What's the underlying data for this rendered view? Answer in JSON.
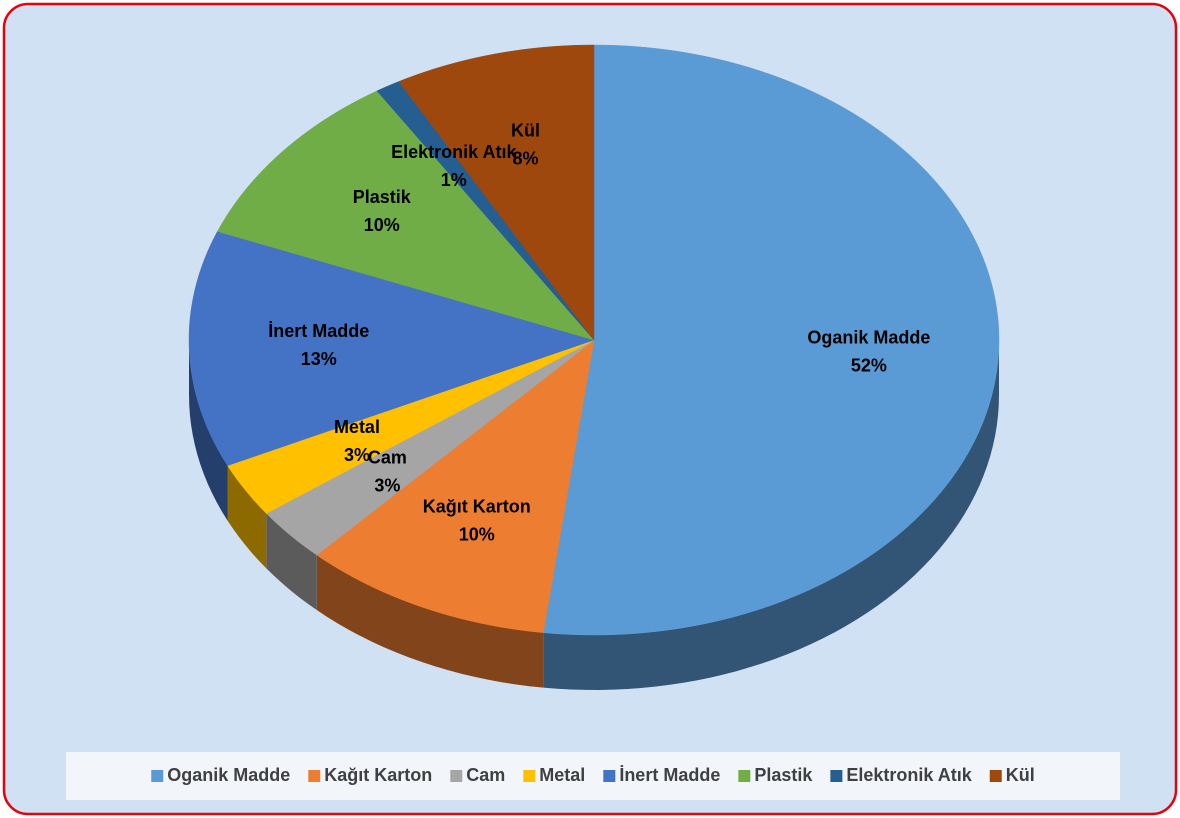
{
  "chart_data": {
    "type": "pie",
    "categories": [
      "Oganik Madde",
      "Kağıt Karton",
      "Cam",
      "Metal",
      "İnert Madde",
      "Plastik",
      "Elektronik Atık",
      "Kül"
    ],
    "values": [
      52,
      10,
      3,
      3,
      13,
      10,
      1,
      8
    ],
    "value_labels": [
      "52%",
      "10%",
      "3%",
      "3%",
      "13%",
      "10%",
      "1%",
      "8%"
    ],
    "colors": [
      "#5b9bd5",
      "#ed7d31",
      "#a5a5a5",
      "#ffc000",
      "#4472c4",
      "#70ad47",
      "#255e91",
      "#9e480e"
    ],
    "legend": "bottom"
  }
}
